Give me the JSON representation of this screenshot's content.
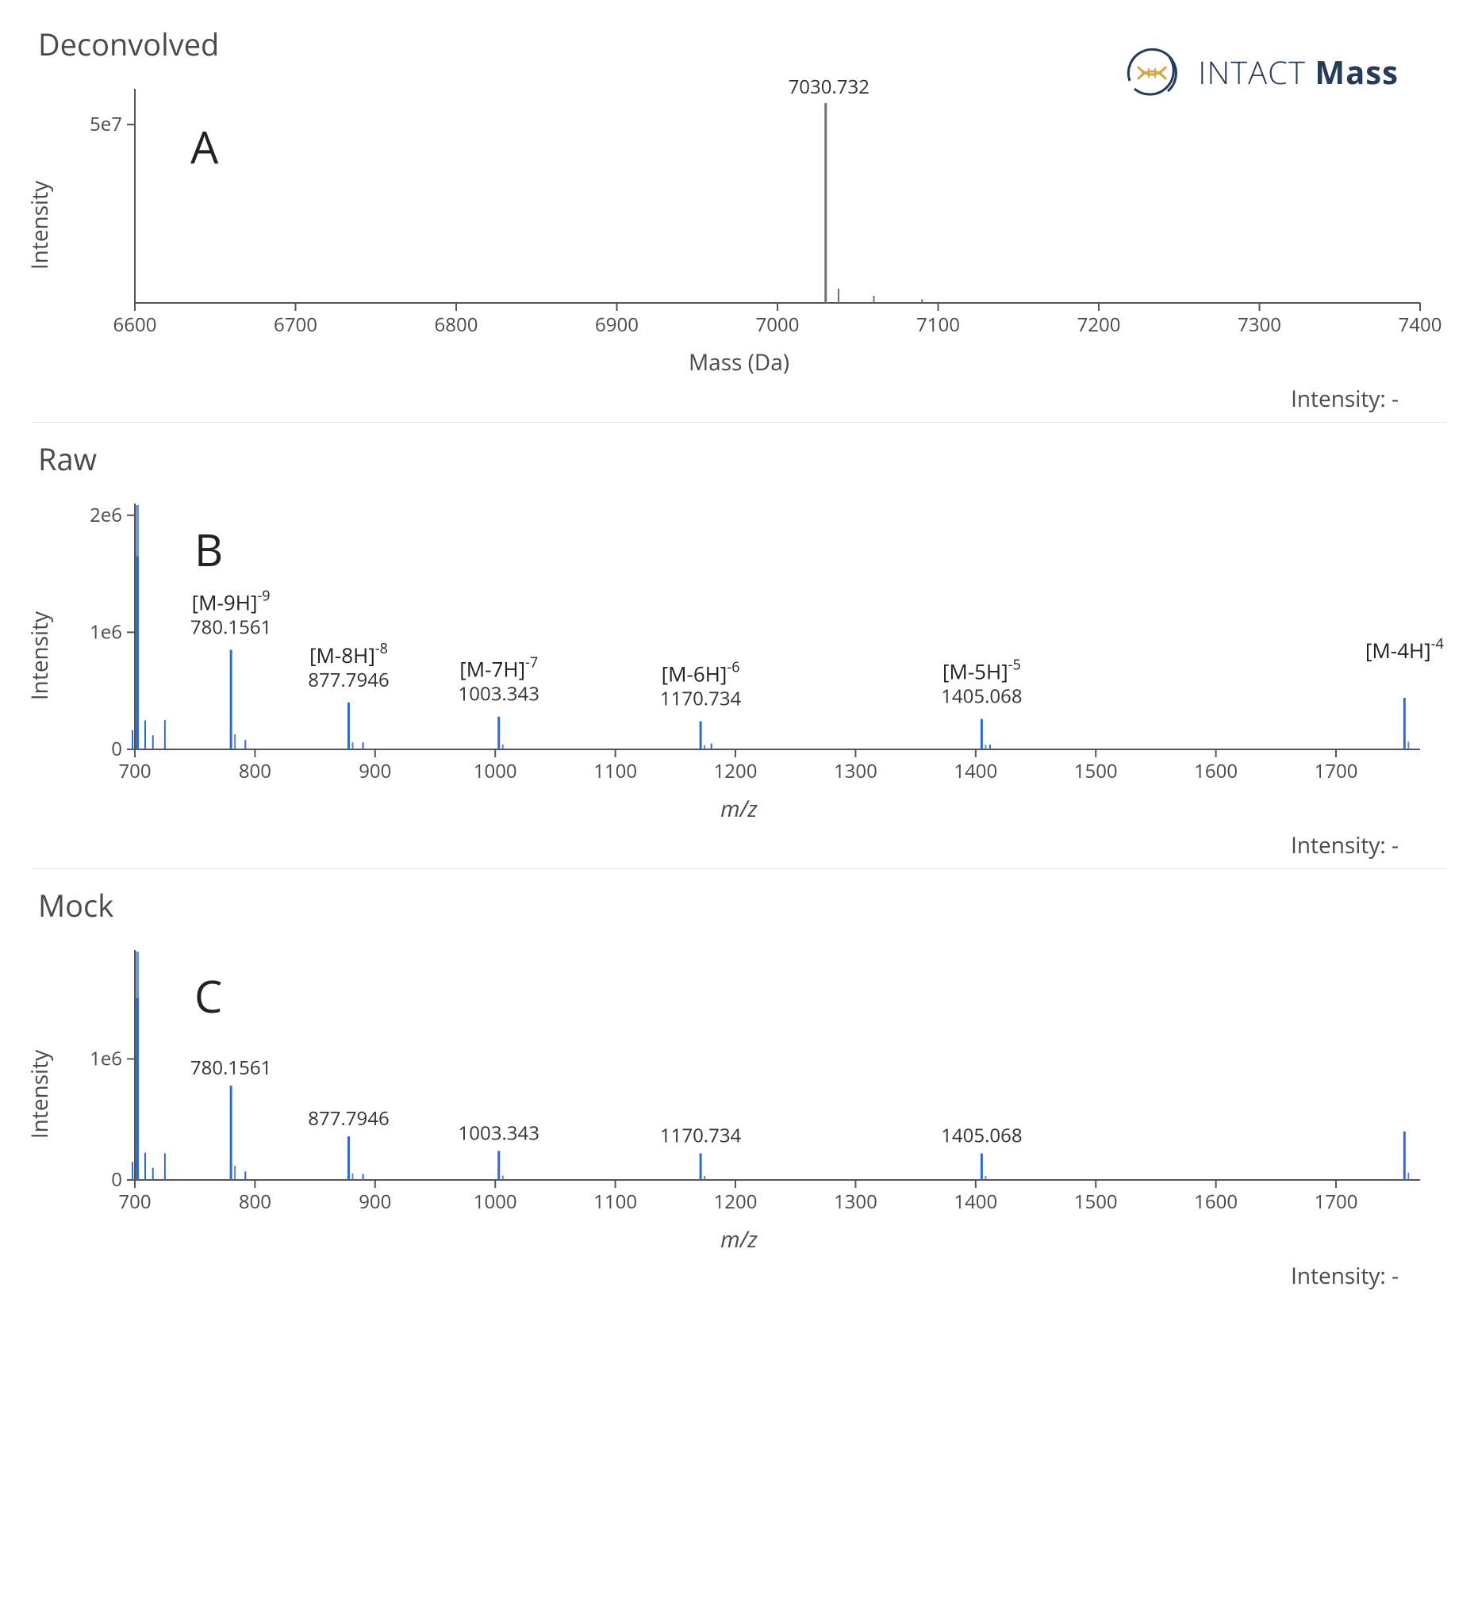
{
  "logo": {
    "brand_light": "INTACT",
    "brand_bold": "Mass"
  },
  "colors": {
    "axis": "#555555",
    "text": "#4a4a4a",
    "peak_gray": "#707070",
    "peak_blue": "#2e6bd1",
    "peak_blue_fill": "#5a8de0",
    "logo_navy": "#243b5a",
    "logo_gold": "#d1a94a"
  },
  "panelA": {
    "title": "Deconvolved",
    "letter": "A",
    "ylabel": "Intensity",
    "xlabel": "Mass (Da)",
    "readout": "Intensity: -",
    "xlim": [
      6600,
      7400
    ],
    "xtick_step": 100,
    "ylim": [
      0,
      60000000.0
    ],
    "yticks": [
      {
        "v": 50000000.0,
        "label": "5e7"
      }
    ],
    "peak_color": "#707070",
    "main_peak": {
      "mass": 7030,
      "intensity": 56000000.0,
      "label": "7030.732"
    },
    "small_peaks": [
      {
        "mass": 7038,
        "intensity": 4000000.0
      },
      {
        "mass": 7060,
        "intensity": 2000000.0
      },
      {
        "mass": 7090,
        "intensity": 1000000.0
      }
    ]
  },
  "panelB": {
    "title": "Raw",
    "letter": "B",
    "ylabel": "Intensity",
    "xlabel": "m/z",
    "readout": "Intensity: -",
    "xlim": [
      700,
      1770
    ],
    "xticks": [
      700,
      800,
      900,
      1000,
      1100,
      1200,
      1300,
      1400,
      1500,
      1600,
      1700
    ],
    "ylim": [
      0,
      2100000.0
    ],
    "yticks": [
      {
        "v": 0,
        "label": "0"
      },
      {
        "v": 1000000.0,
        "label": "1e6"
      },
      {
        "v": 2000000.0,
        "label": "2e6"
      }
    ],
    "peak_color": "#2e6bd1",
    "left_cluster": {
      "mz": 702,
      "intensity": 1650000.0
    },
    "peaks": [
      {
        "mz": 780,
        "intensity": 850000.0,
        "label": "780.1561",
        "cs_base": "[M-9H]",
        "cs_sup": "-9"
      },
      {
        "mz": 878,
        "intensity": 400000.0,
        "label": "877.7946",
        "cs_base": "[M-8H]",
        "cs_sup": "-8"
      },
      {
        "mz": 1003,
        "intensity": 280000.0,
        "label": "1003.343",
        "cs_base": "[M-7H]",
        "cs_sup": "-7"
      },
      {
        "mz": 1171,
        "intensity": 240000.0,
        "label": "1170.734",
        "cs_base": "[M-6H]",
        "cs_sup": "-6"
      },
      {
        "mz": 1405,
        "intensity": 260000.0,
        "label": "1405.068",
        "cs_base": "[M-5H]",
        "cs_sup": "-5"
      },
      {
        "mz": 1757,
        "intensity": 440000.0,
        "label": "",
        "cs_base": "[M-4H]",
        "cs_sup": "-4"
      }
    ],
    "noise_peaks": [
      {
        "mz": 715,
        "intensity": 120000.0
      },
      {
        "mz": 725,
        "intensity": 250000.0
      },
      {
        "mz": 792,
        "intensity": 80000.0
      },
      {
        "mz": 890,
        "intensity": 60000.0
      },
      {
        "mz": 1180,
        "intensity": 50000.0
      },
      {
        "mz": 1412,
        "intensity": 40000.0
      }
    ]
  },
  "panelC": {
    "title": "Mock",
    "letter": "C",
    "ylabel": "Intensity",
    "xlabel": "m/z",
    "readout": "Intensity: -",
    "xlim": [
      700,
      1770
    ],
    "xticks": [
      700,
      800,
      900,
      1000,
      1100,
      1200,
      1300,
      1400,
      1500,
      1600,
      1700
    ],
    "ylim": [
      0,
      1900000.0
    ],
    "yticks": [
      {
        "v": 0,
        "label": "0"
      },
      {
        "v": 1000000.0,
        "label": "1e6"
      }
    ],
    "peak_color": "#2e6bd1",
    "left_cluster": {
      "mz": 702,
      "intensity": 1500000.0
    },
    "peaks": [
      {
        "mz": 780,
        "intensity": 780000.0,
        "label": "780.1561"
      },
      {
        "mz": 878,
        "intensity": 360000.0,
        "label": "877.7946"
      },
      {
        "mz": 1003,
        "intensity": 240000.0,
        "label": "1003.343"
      },
      {
        "mz": 1171,
        "intensity": 220000.0,
        "label": "1170.734"
      },
      {
        "mz": 1405,
        "intensity": 220000.0,
        "label": "1405.068"
      },
      {
        "mz": 1757,
        "intensity": 400000.0,
        "label": ""
      }
    ],
    "noise_peaks": [
      {
        "mz": 715,
        "intensity": 100000.0
      },
      {
        "mz": 725,
        "intensity": 220000.0
      },
      {
        "mz": 792,
        "intensity": 70000.0
      },
      {
        "mz": 890,
        "intensity": 50000.0
      }
    ]
  }
}
